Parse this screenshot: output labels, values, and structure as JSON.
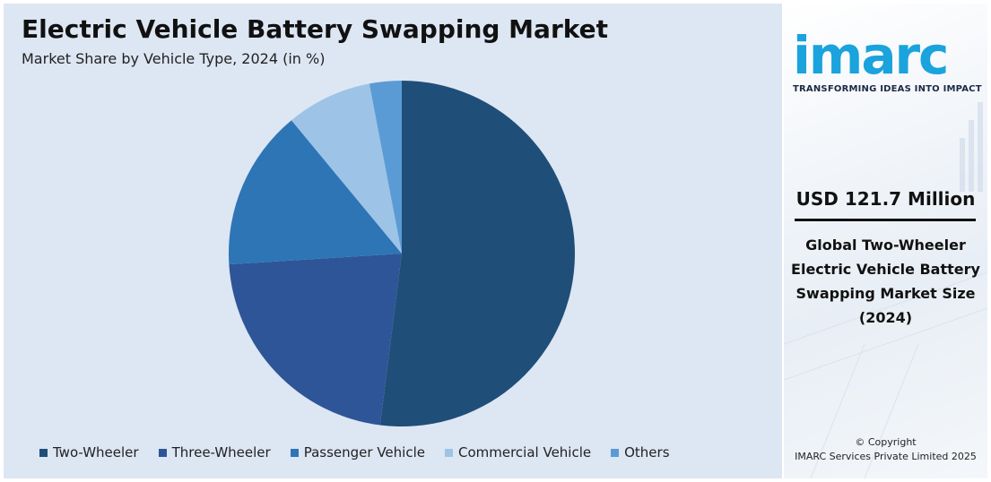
{
  "chart_data": {
    "type": "pie",
    "title": "Electric Vehicle Battery Swapping Market",
    "subtitle": "Market Share by Vehicle Type, 2024 (in %)",
    "categories": [
      "Two-Wheeler",
      "Three-Wheeler",
      "Passenger Vehicle",
      "Commercial Vehicle",
      "Others"
    ],
    "values": [
      52,
      22,
      15,
      8,
      3
    ],
    "colors": [
      "#1f4e79",
      "#2e5597",
      "#2e75b6",
      "#9dc3e6",
      "#5b9bd5"
    ],
    "legend_position": "bottom"
  },
  "brand": {
    "logo": "imarc",
    "tagline": "TRANSFORMING IDEAS INTO IMPACT",
    "color": "#1aa3dc"
  },
  "highlight": {
    "value": "USD 121.7 Million",
    "description": "Global Two-Wheeler Electric Vehicle Battery Swapping Market Size (2024)"
  },
  "footer": {
    "copyright_line1": "© Copyright",
    "copyright_line2": "IMARC Services Private Limited 2025"
  }
}
